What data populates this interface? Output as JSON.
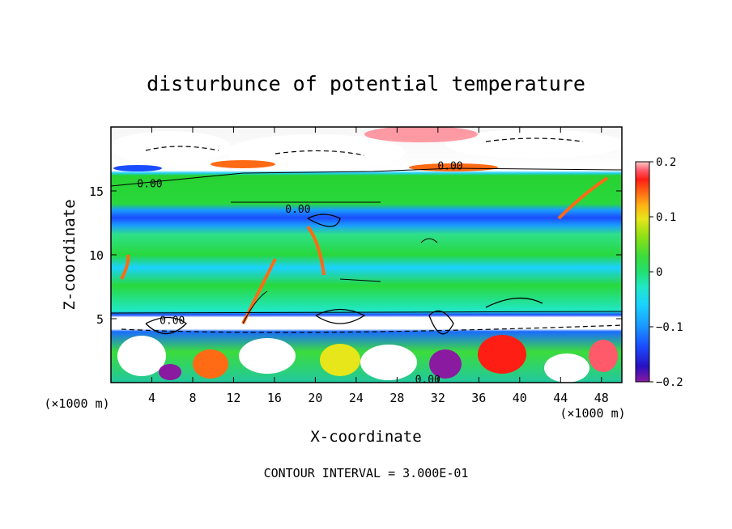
{
  "chart_data": {
    "type": "heatmap",
    "title": "disturbunce of potential temperature",
    "xlabel": "X-coordinate",
    "ylabel": "Z-coordinate",
    "x_unit_left": "(×1000 m)",
    "x_unit_right": "(×1000 m)",
    "footer": "CONTOUR INTERVAL = 3.000E-01",
    "xlim": [
      0,
      50
    ],
    "ylim": [
      0,
      20
    ],
    "x_ticks": [
      "4",
      "8",
      "12",
      "16",
      "20",
      "24",
      "28",
      "32",
      "36",
      "40",
      "44",
      "48"
    ],
    "x_tick_values": [
      4,
      8,
      12,
      16,
      20,
      24,
      28,
      32,
      36,
      40,
      44,
      48
    ],
    "y_ticks": [
      "5",
      "10",
      "15"
    ],
    "y_tick_values": [
      5,
      10,
      15
    ],
    "colorbar": {
      "min": -0.2,
      "max": 0.2,
      "labels": [
        "0.2",
        "0.1",
        "0",
        "−0.1",
        "−0.2"
      ],
      "label_values": [
        0.2,
        0.1,
        0,
        -0.1,
        -0.2
      ],
      "colors": [
        "#8a1aa0",
        "#2810c0",
        "#1a4cff",
        "#1a9cff",
        "#1ad2ff",
        "#20e8c8",
        "#22e070",
        "#3cdc3c",
        "#8ee014",
        "#e6e61a",
        "#ffb414",
        "#ff6a14",
        "#ff1e14",
        "#ff5a6a",
        "#ffc8c8"
      ]
    },
    "contour_labels": [
      {
        "text": "0.00",
        "x": 3.8,
        "z": 15.6
      },
      {
        "text": "0.00",
        "x": 33.2,
        "z": 17.0
      },
      {
        "text": "0.00",
        "x": 18.3,
        "z": 13.6
      },
      {
        "text": "0.00",
        "x": 31.0,
        "z": 0.3
      },
      {
        "text": "0.00",
        "x": 6.0,
        "z": 4.9
      }
    ]
  }
}
